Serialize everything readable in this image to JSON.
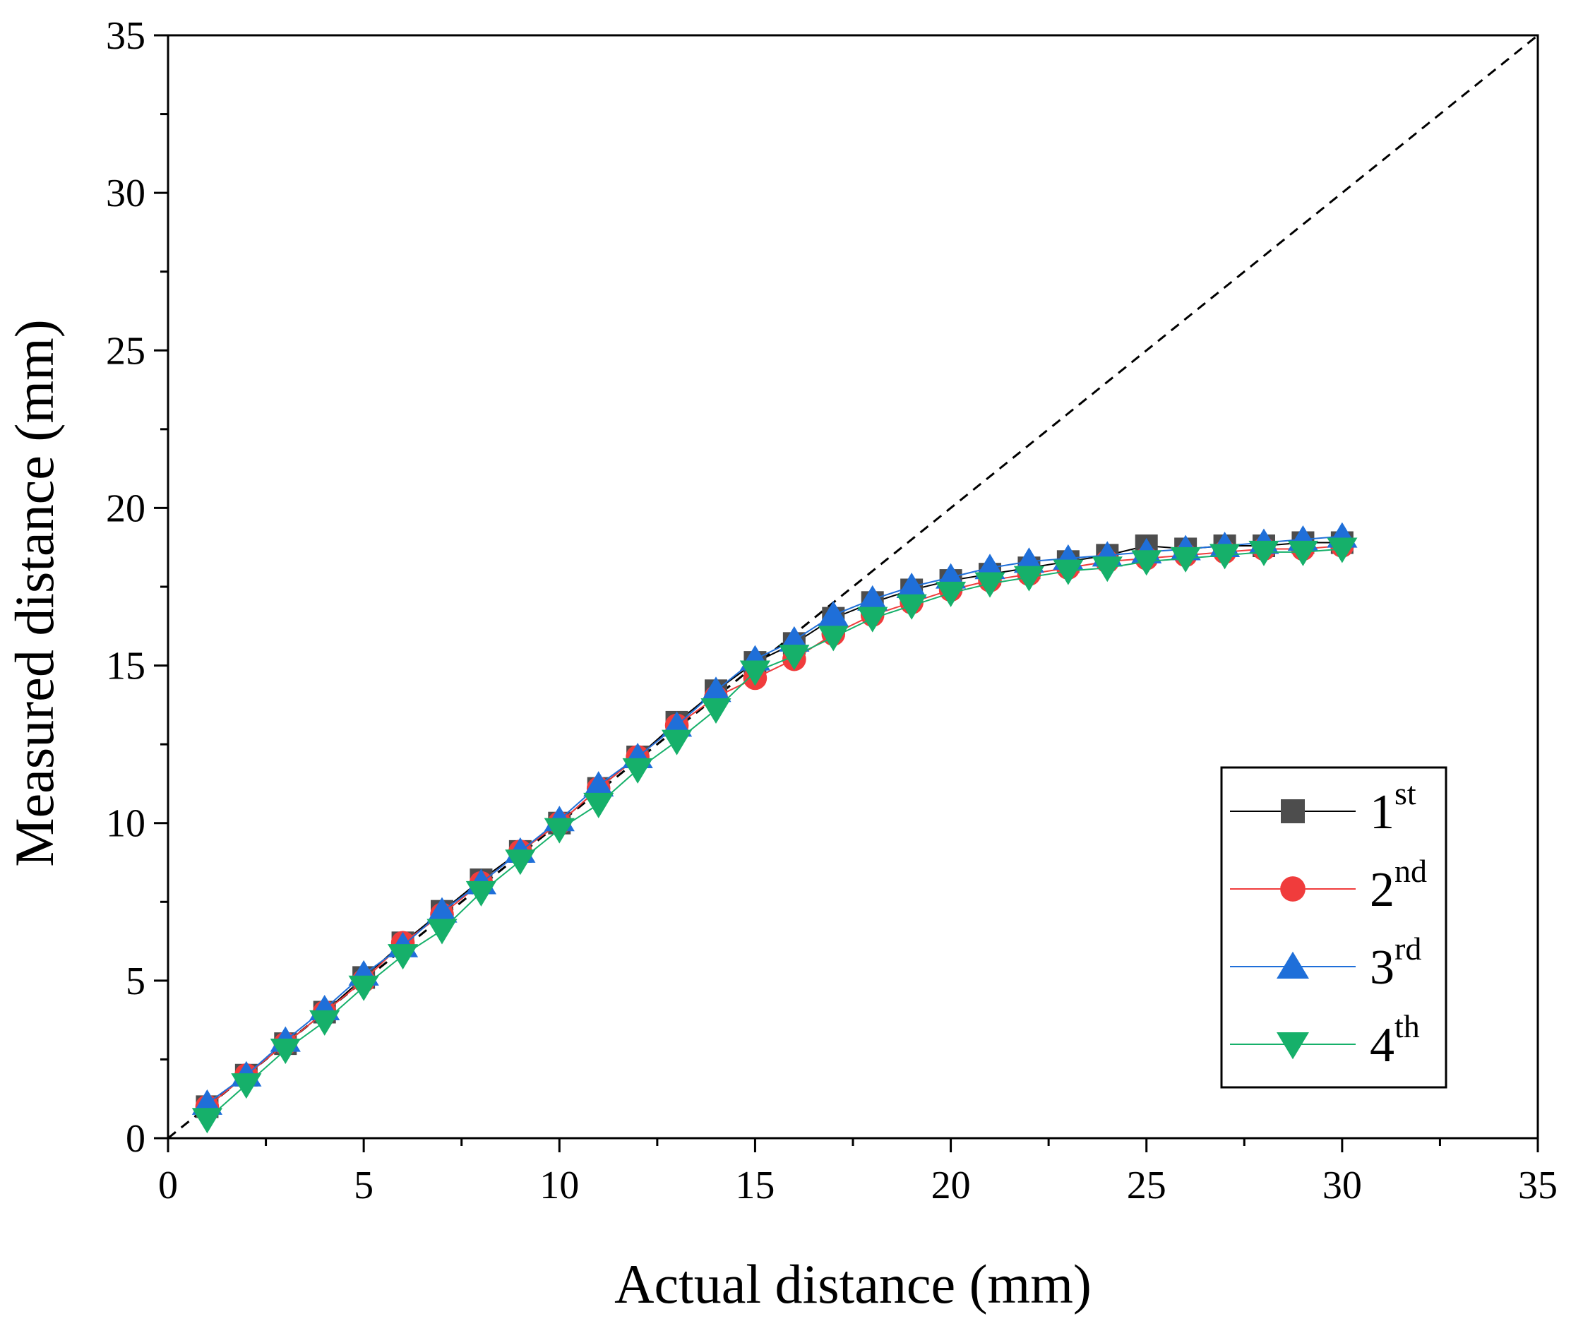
{
  "chart_data": {
    "type": "scatter",
    "title": "",
    "xlabel": "Actual distance (mm)",
    "ylabel": "Measured distance (mm)",
    "xlim": [
      0,
      35
    ],
    "ylim": [
      0,
      35
    ],
    "xticks": [
      0,
      5,
      10,
      15,
      20,
      25,
      30,
      35
    ],
    "yticks": [
      0,
      5,
      10,
      15,
      20,
      25,
      30,
      35
    ],
    "grid": false,
    "legend_position": "bottom-right",
    "reference_line": {
      "style": "dashed",
      "color": "#000000",
      "from": [
        0,
        0
      ],
      "to": [
        35,
        35
      ]
    },
    "x": [
      1,
      2,
      3,
      4,
      5,
      6,
      7,
      8,
      9,
      10,
      11,
      12,
      13,
      14,
      15,
      16,
      17,
      18,
      19,
      20,
      21,
      22,
      23,
      24,
      25,
      26,
      27,
      28,
      29,
      30
    ],
    "series": [
      {
        "name": "1",
        "suffix": "st",
        "color": "#4d4d4d",
        "line_color": "#000000",
        "marker": "square",
        "values": [
          1.0,
          2.0,
          3.0,
          4.0,
          5.1,
          6.2,
          7.2,
          8.2,
          9.1,
          10.0,
          11.1,
          12.1,
          13.2,
          14.2,
          15.1,
          15.7,
          16.5,
          17.0,
          17.4,
          17.7,
          17.9,
          18.1,
          18.3,
          18.5,
          18.8,
          18.7,
          18.8,
          18.8,
          18.9,
          18.9
        ]
      },
      {
        "name": "2",
        "suffix": "nd",
        "color": "#f03c3c",
        "line_color": "#f03c3c",
        "marker": "circle",
        "values": [
          1.0,
          2.0,
          3.0,
          4.0,
          5.0,
          6.2,
          7.1,
          8.1,
          9.1,
          10.0,
          11.1,
          12.1,
          13.1,
          14.0,
          14.6,
          15.2,
          16.0,
          16.6,
          17.0,
          17.4,
          17.7,
          17.9,
          18.1,
          18.3,
          18.4,
          18.5,
          18.6,
          18.7,
          18.7,
          18.8
        ]
      },
      {
        "name": "3",
        "suffix": "rd",
        "color": "#1f6fd9",
        "line_color": "#1f6fd9",
        "marker": "triangle-up",
        "values": [
          1.1,
          2.0,
          3.1,
          4.1,
          5.2,
          6.1,
          7.2,
          8.1,
          9.1,
          10.1,
          11.2,
          12.1,
          13.1,
          14.2,
          15.2,
          15.8,
          16.6,
          17.1,
          17.5,
          17.8,
          18.1,
          18.3,
          18.4,
          18.5,
          18.6,
          18.7,
          18.8,
          18.9,
          19.0,
          19.1
        ]
      },
      {
        "name": "4",
        "suffix": "th",
        "color": "#16b06a",
        "line_color": "#16b06a",
        "marker": "triangle-down",
        "values": [
          0.6,
          1.7,
          2.8,
          3.7,
          4.8,
          5.8,
          6.6,
          7.8,
          8.8,
          9.8,
          10.6,
          11.7,
          12.6,
          13.6,
          14.8,
          15.3,
          15.9,
          16.5,
          16.9,
          17.3,
          17.6,
          17.8,
          18.0,
          18.1,
          18.3,
          18.4,
          18.5,
          18.6,
          18.6,
          18.7
        ]
      }
    ]
  }
}
